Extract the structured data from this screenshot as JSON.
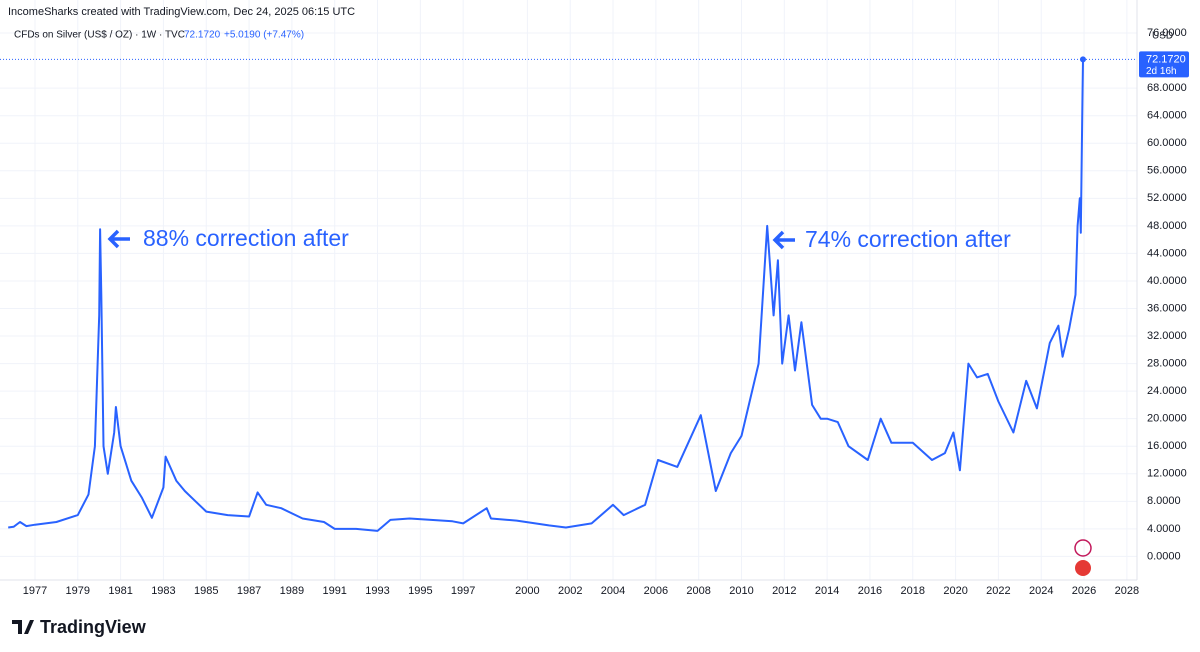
{
  "chart_data": {
    "type": "line",
    "header": "IncomeSharks created with TradingView.com, Dec 24, 2025 06:15 UTC",
    "legend": {
      "symbol": "CFDs on Silver (US$ / OZ) · 1W · TVC",
      "price": "72.1720",
      "change": "+5.0190 (+7.47%)"
    },
    "currency": "USD",
    "price_tag": {
      "value": 72.172,
      "label": "72.1720",
      "countdown": "2d 16h"
    },
    "annotations": [
      "88% correction after",
      "74% correction after"
    ],
    "brand": "TradingView",
    "color": "#2962ff",
    "grid": true,
    "x": [
      1975.75,
      1976.0,
      1976.3,
      1976.6,
      1977.0,
      1978.0,
      1979.0,
      1979.5,
      1979.8,
      1980.0,
      1980.04,
      1980.1,
      1980.2,
      1980.4,
      1980.7,
      1980.78,
      1981.0,
      1981.5,
      1982.0,
      1982.46,
      1983.0,
      1983.1,
      1983.6,
      1984.0,
      1984.5,
      1985.0,
      1986.0,
      1987.0,
      1987.4,
      1987.8,
      1988.5,
      1989.5,
      1990.5,
      1991.0,
      1992.0,
      1993.0,
      1993.6,
      1994.5,
      1995.5,
      1996.5,
      1997.0,
      1998.1,
      1998.3,
      1999.5,
      2001.0,
      2001.8,
      2003.0,
      2004.0,
      2004.5,
      2005.5,
      2006.1,
      2007.0,
      2008.1,
      2008.8,
      2009.5,
      2010.0,
      2010.8,
      2011.2,
      2011.5,
      2011.7,
      2011.9,
      2012.2,
      2012.5,
      2012.8,
      2013.3,
      2013.7,
      2014.0,
      2014.5,
      2015.0,
      2015.9,
      2016.5,
      2017.0,
      2018.0,
      2018.9,
      2019.5,
      2019.9,
      2020.2,
      2020.6,
      2021.0,
      2021.5,
      2022.0,
      2022.7,
      2023.3,
      2023.8,
      2024.4,
      2024.8,
      2025.0,
      2025.3,
      2025.6,
      2025.7,
      2025.8,
      2025.85,
      2025.9,
      2025.93,
      2025.95
    ],
    "values": [
      4.2,
      4.3,
      5.0,
      4.4,
      4.6,
      5.0,
      6.0,
      9.0,
      16.0,
      35.0,
      47.5,
      38.0,
      16.0,
      12.0,
      18.0,
      21.7,
      16.0,
      11.0,
      8.5,
      5.6,
      10.0,
      14.5,
      11.0,
      9.5,
      8.0,
      6.5,
      6.0,
      5.8,
      9.3,
      7.5,
      7.0,
      5.5,
      5.0,
      4.0,
      4.0,
      3.7,
      5.3,
      5.5,
      5.3,
      5.1,
      4.8,
      7.0,
      5.5,
      5.2,
      4.5,
      4.2,
      4.8,
      7.5,
      6.0,
      7.5,
      14.0,
      13.0,
      20.5,
      9.5,
      15.0,
      17.5,
      28.0,
      48.0,
      35.0,
      43.0,
      28.0,
      35.0,
      27.0,
      34.0,
      22.0,
      20.0,
      20.0,
      19.5,
      16.0,
      14.0,
      20.0,
      16.5,
      16.5,
      14.0,
      15.0,
      18.0,
      12.5,
      28.0,
      26.0,
      26.5,
      22.5,
      18.0,
      25.5,
      21.5,
      31.0,
      33.5,
      29.0,
      33.0,
      38.0,
      48.0,
      52.0,
      47.0,
      60.0,
      67.0,
      72.172
    ],
    "xlim": [
      1975.74,
      2028.38
    ],
    "xticks": [
      1977,
      1979,
      1981,
      1983,
      1985,
      1987,
      1989,
      1991,
      1993,
      1995,
      1997,
      2000,
      2002,
      2004,
      2006,
      2008,
      2010,
      2012,
      2014,
      2016,
      2018,
      2020,
      2022,
      2024,
      2026,
      2028
    ],
    "ylim": [
      -2.7,
      80.8
    ],
    "yticks": [
      {
        "value": 0,
        "label": "0.0000"
      },
      {
        "value": 4,
        "label": "4.0000"
      },
      {
        "value": 8,
        "label": "8.0000"
      },
      {
        "value": 12,
        "label": "12.0000"
      },
      {
        "value": 16,
        "label": "16.0000"
      },
      {
        "value": 20,
        "label": "20.0000"
      },
      {
        "value": 24,
        "label": "24.0000"
      },
      {
        "value": 28,
        "label": "28.0000"
      },
      {
        "value": 32,
        "label": "32.0000"
      },
      {
        "value": 36,
        "label": "36.0000"
      },
      {
        "value": 40,
        "label": "40.0000"
      },
      {
        "value": 44,
        "label": "44.0000"
      },
      {
        "value": 48,
        "label": "48.0000"
      },
      {
        "value": 52,
        "label": "52.0000"
      },
      {
        "value": 56,
        "label": "56.0000"
      },
      {
        "value": 60,
        "label": "60.0000"
      },
      {
        "value": 64,
        "label": "64.0000"
      },
      {
        "value": 68,
        "label": "68.0000"
      },
      {
        "value": 76,
        "label": "76.0000"
      }
    ]
  }
}
